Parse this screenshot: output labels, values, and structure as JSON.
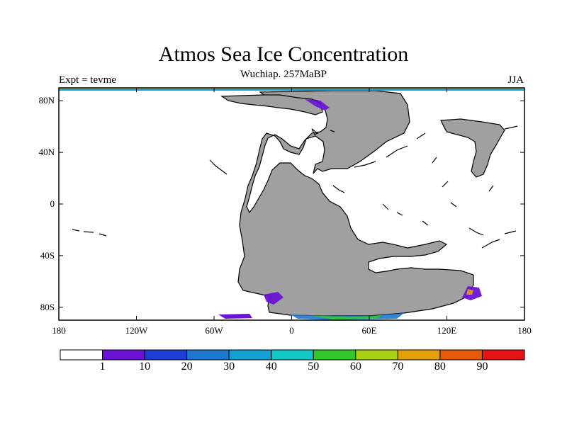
{
  "title": "Atmos Sea Ice Concentration",
  "subtitle": "Wuchiap. 257MaBP",
  "left_label": "Expt = tevme",
  "right_label": "JJA",
  "map": {
    "projection": "cylindrical-equidistant",
    "lon_range": [
      -180,
      180
    ],
    "lat_range": [
      -90,
      90
    ],
    "land_color": "#a0a0a0",
    "ocean_color": "#ffffff",
    "x_ticks": [
      {
        "lon": -180,
        "label": "180"
      },
      {
        "lon": -120,
        "label": "120W"
      },
      {
        "lon": -60,
        "label": "60W"
      },
      {
        "lon": 0,
        "label": "0"
      },
      {
        "lon": 60,
        "label": "60E"
      },
      {
        "lon": 120,
        "label": "120E"
      },
      {
        "lon": 180,
        "label": "180"
      }
    ],
    "y_ticks": [
      {
        "lat": 80,
        "label": "80N"
      },
      {
        "lat": 40,
        "label": "40N"
      },
      {
        "lat": 0,
        "label": "0"
      },
      {
        "lat": -40,
        "label": "40S"
      },
      {
        "lat": -80,
        "label": "80S"
      }
    ]
  },
  "colorbar": {
    "colors": [
      "#ffffff",
      "#6a12d6",
      "#1e3cd6",
      "#1e78d2",
      "#14a0d2",
      "#14c8c8",
      "#32c828",
      "#aad214",
      "#e6a00a",
      "#e65a0a",
      "#e61414"
    ],
    "labels": [
      "1",
      "10",
      "20",
      "30",
      "40",
      "50",
      "60",
      "70",
      "80",
      "90"
    ]
  }
}
